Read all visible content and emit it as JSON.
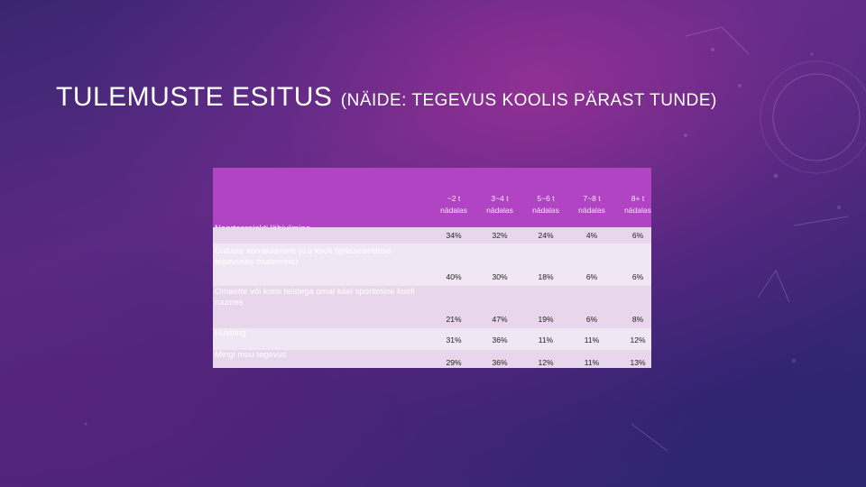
{
  "slide": {
    "title_main": "TULEMUSTE ESITUS",
    "title_sub": "(NÄIDE: TEGEVUS KOOLIS PÄRAST TUNDE)"
  },
  "table": {
    "columns": [
      {
        "line1": "~2 t",
        "line2": "nädalas"
      },
      {
        "line1": "3~4 t",
        "line2": "nädalas"
      },
      {
        "line1": "5~6 t",
        "line2": "nädalas"
      },
      {
        "line1": "7~8 t",
        "line2": "nädalas"
      },
      {
        "line1": "8+ t",
        "line2": "nädalas"
      }
    ],
    "rows": [
      {
        "label": "Noorteprojekti läbiviimine",
        "values": [
          "34%",
          "32%",
          "24%",
          "4%",
          "6%"
        ]
      },
      {
        "label": "Ürituste korraldamine (v.a kooli õpilasesinduse tegevuses osalemine)",
        "values": [
          "40%",
          "30%",
          "18%",
          "6%",
          "6%"
        ]
      },
      {
        "label": "Omaette või koos teistega omal käel sportimine kooli ruumes",
        "values": [
          "21%",
          "47%",
          "19%",
          "6%",
          "8%"
        ]
      },
      {
        "label": "Huviring",
        "values": [
          "31%",
          "36%",
          "11%",
          "11%",
          "12%"
        ]
      },
      {
        "label": "Mingi muu tegevus",
        "values": [
          "29%",
          "36%",
          "12%",
          "11%",
          "13%"
        ]
      }
    ]
  },
  "colors": {
    "table_header": "#b044c3",
    "row_alt": "#e8d7ec",
    "row_light": "#f1e6f3"
  }
}
